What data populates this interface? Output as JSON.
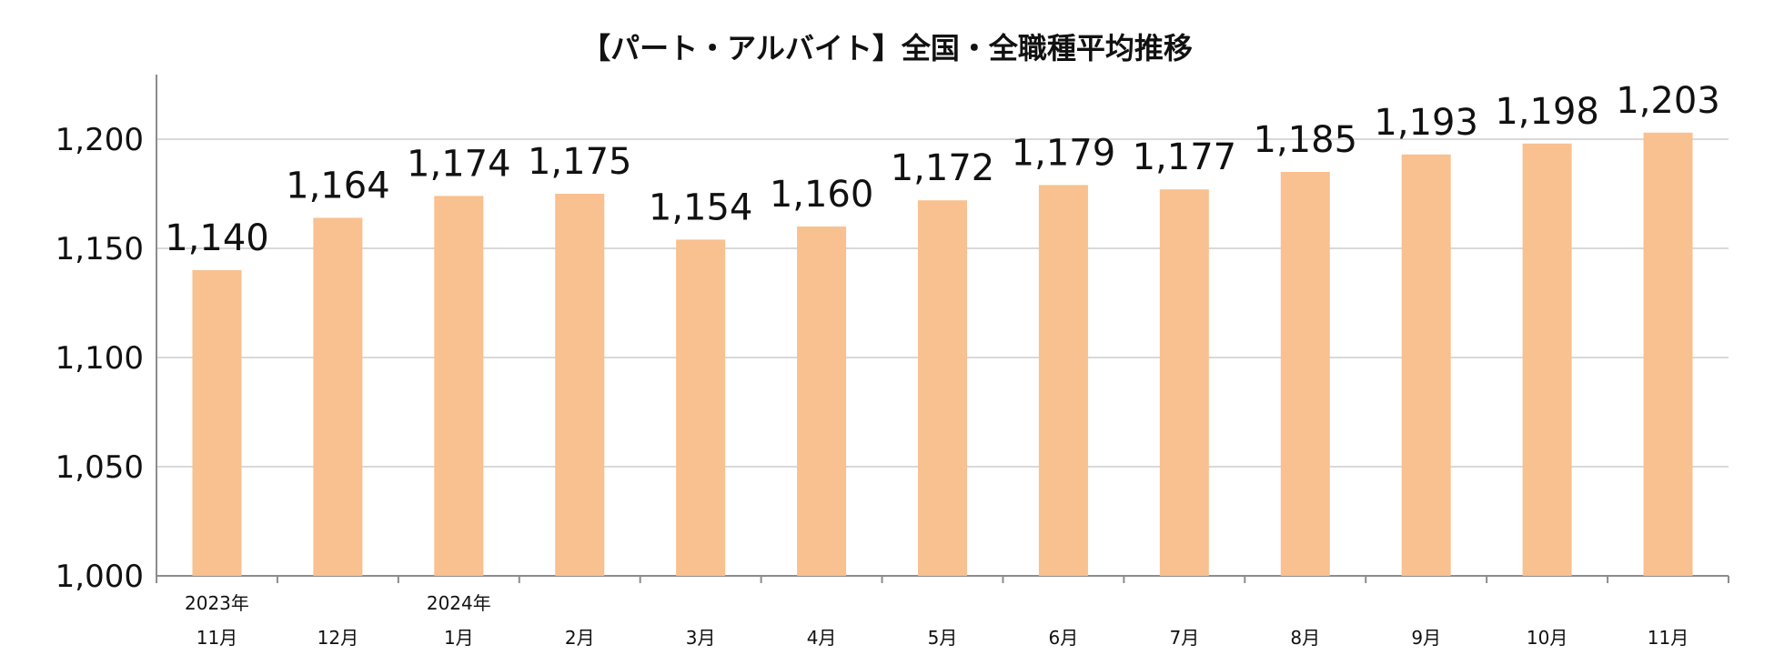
{
  "chart_data": {
    "type": "bar",
    "title": "【パート・アルバイト】全国・全職種平均推移",
    "xlabel": "",
    "ylabel": "",
    "ylim": [
      1000,
      1230
    ],
    "yticks": [
      1000,
      1050,
      1100,
      1150,
      1200
    ],
    "ytick_labels": [
      "1,000",
      "1,050",
      "1,100",
      "1,150",
      "1,200"
    ],
    "grid": true,
    "legend": "none",
    "bar_color": "#F9C090",
    "grid_color": "#D9D9D9",
    "categories": [
      "11月",
      "12月",
      "1月",
      "2月",
      "3月",
      "4月",
      "5月",
      "6月",
      "7月",
      "8月",
      "9月",
      "10月",
      "11月"
    ],
    "year_labels": [
      "2023年",
      "",
      "2024年",
      "",
      "",
      "",
      "",
      "",
      "",
      "",
      "",
      "",
      ""
    ],
    "values": [
      1140,
      1164,
      1174,
      1175,
      1154,
      1160,
      1172,
      1179,
      1177,
      1185,
      1193,
      1198,
      1203
    ],
    "value_labels": [
      "1,140",
      "1,164",
      "1,174",
      "1,175",
      "1,154",
      "1,160",
      "1,172",
      "1,179",
      "1,177",
      "1,185",
      "1,193",
      "1,198",
      "1,203"
    ]
  }
}
